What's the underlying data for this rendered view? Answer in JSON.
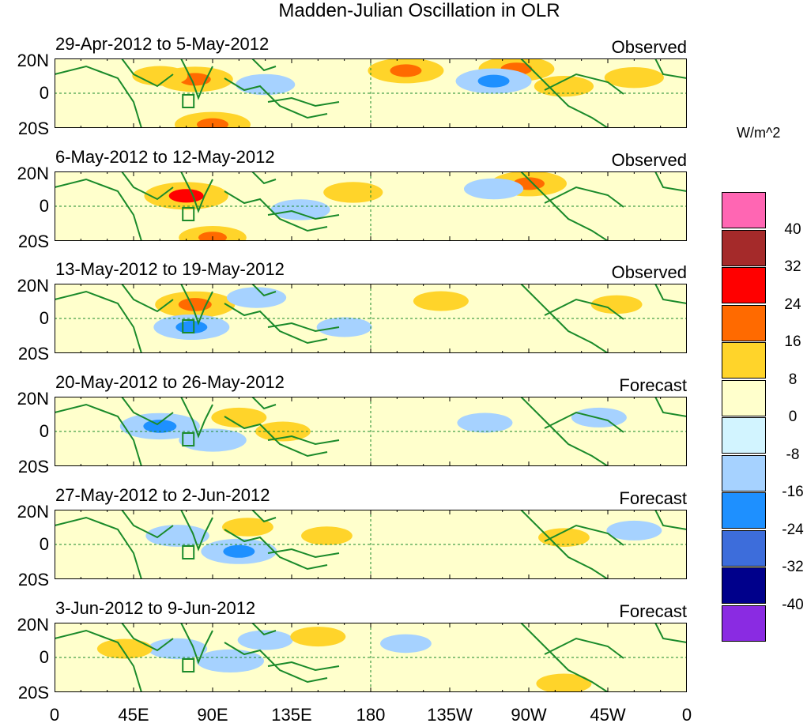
{
  "chart_data": {
    "type": "heatmap",
    "title": "Madden-Julian Oscillation in OLR",
    "x_tick_labels": [
      "0",
      "45E",
      "90E",
      "135E",
      "180",
      "135W",
      "90W",
      "45W",
      "0"
    ],
    "x_tick_values_deg": [
      0,
      45,
      90,
      135,
      180,
      225,
      270,
      315,
      360
    ],
    "y_tick_labels": [
      "20N",
      "0",
      "20S"
    ],
    "y_range": [
      -20,
      20
    ],
    "x_range": [
      0,
      360
    ],
    "colorbar": {
      "unit": "W/m^2",
      "tick_labels": [
        "40",
        "32",
        "24",
        "16",
        "8",
        "0",
        "-8",
        "-16",
        "-24",
        "-32",
        "-40"
      ],
      "colors": [
        "#ff66b3",
        "#a52a2a",
        "#ff0000",
        "#ff6a00",
        "#ffd42a",
        "#ffffcc",
        "#d2f4ff",
        "#a6d2ff",
        "#1e90ff",
        "#3d6ddb",
        "#00008b",
        "#8a2be2"
      ]
    },
    "panels": [
      {
        "label": "29-Apr-2012 to 5-May-2012",
        "type_label": "Observed",
        "anomalies": [
          {
            "lon": 80,
            "lat": 8,
            "value": 20
          },
          {
            "lon": 90,
            "lat": -18,
            "value": 20
          },
          {
            "lon": 200,
            "lat": 13,
            "value": 20
          },
          {
            "lon": 263,
            "lat": 14,
            "value": 20
          },
          {
            "lon": 290,
            "lat": 4,
            "value": 12
          },
          {
            "lon": 330,
            "lat": 9,
            "value": 12
          },
          {
            "lon": 60,
            "lat": 10,
            "value": 10
          },
          {
            "lon": 250,
            "lat": 7,
            "value": -20
          },
          {
            "lon": 120,
            "lat": 5,
            "value": -12
          }
        ]
      },
      {
        "label": "6-May-2012 to 12-May-2012",
        "type_label": "Observed",
        "anomalies": [
          {
            "lon": 75,
            "lat": 6,
            "value": 24
          },
          {
            "lon": 90,
            "lat": -18,
            "value": 16
          },
          {
            "lon": 270,
            "lat": 13,
            "value": 20
          },
          {
            "lon": 170,
            "lat": 8,
            "value": 12
          },
          {
            "lon": 140,
            "lat": -2,
            "value": -12
          },
          {
            "lon": 250,
            "lat": 10,
            "value": -12
          }
        ]
      },
      {
        "label": "13-May-2012 to 19-May-2012",
        "type_label": "Observed",
        "anomalies": [
          {
            "lon": 80,
            "lat": 8,
            "value": 22
          },
          {
            "lon": 78,
            "lat": -5,
            "value": -20
          },
          {
            "lon": 115,
            "lat": 12,
            "value": -12
          },
          {
            "lon": 220,
            "lat": 10,
            "value": 10
          },
          {
            "lon": 165,
            "lat": -5,
            "value": -10
          },
          {
            "lon": 320,
            "lat": 8,
            "value": 8
          }
        ]
      },
      {
        "label": "20-May-2012 to 26-May-2012",
        "type_label": "Forecast",
        "anomalies": [
          {
            "lon": 60,
            "lat": 3,
            "value": -22
          },
          {
            "lon": 90,
            "lat": -5,
            "value": -16
          },
          {
            "lon": 105,
            "lat": 8,
            "value": 10
          },
          {
            "lon": 130,
            "lat": 0,
            "value": 10
          },
          {
            "lon": 245,
            "lat": 5,
            "value": -10
          },
          {
            "lon": 310,
            "lat": 8,
            "value": -10
          }
        ]
      },
      {
        "label": "27-May-2012 to 2-Jun-2012",
        "type_label": "Forecast",
        "anomalies": [
          {
            "lon": 70,
            "lat": 5,
            "value": -14
          },
          {
            "lon": 105,
            "lat": -4,
            "value": -20
          },
          {
            "lon": 110,
            "lat": 10,
            "value": 8
          },
          {
            "lon": 155,
            "lat": 5,
            "value": 8
          },
          {
            "lon": 290,
            "lat": 4,
            "value": 8
          },
          {
            "lon": 330,
            "lat": 8,
            "value": -10
          }
        ]
      },
      {
        "label": "3-Jun-2012 to 9-Jun-2012",
        "type_label": "Forecast",
        "anomalies": [
          {
            "lon": 70,
            "lat": 5,
            "value": -12
          },
          {
            "lon": 100,
            "lat": -2,
            "value": -16
          },
          {
            "lon": 120,
            "lat": 10,
            "value": -10
          },
          {
            "lon": 40,
            "lat": 5,
            "value": 10
          },
          {
            "lon": 150,
            "lat": 12,
            "value": 10
          },
          {
            "lon": 200,
            "lat": 8,
            "value": -8
          },
          {
            "lon": 290,
            "lat": -15,
            "value": 10
          }
        ]
      }
    ]
  }
}
